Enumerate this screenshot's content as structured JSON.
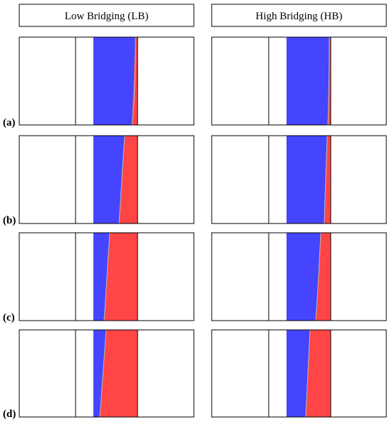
{
  "headers": {
    "left": "Low Bridging (LB)",
    "right": "High Bridging (HB)"
  },
  "row_labels": [
    "(a)",
    "(b)",
    "(c)",
    "(d)"
  ],
  "colors": {
    "blue": "#4545ff",
    "red": "#ff4545",
    "outline": "#000000"
  }
}
